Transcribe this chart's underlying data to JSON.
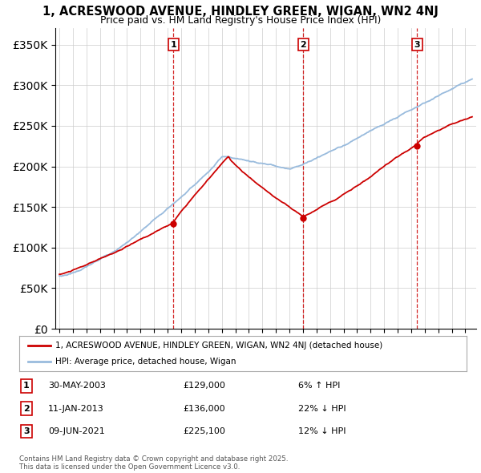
{
  "title": "1, ACRESWOOD AVENUE, HINDLEY GREEN, WIGAN, WN2 4NJ",
  "subtitle": "Price paid vs. HM Land Registry's House Price Index (HPI)",
  "legend_label_red": "1, ACRESWOOD AVENUE, HINDLEY GREEN, WIGAN, WN2 4NJ (detached house)",
  "legend_label_blue": "HPI: Average price, detached house, Wigan",
  "footer": "Contains HM Land Registry data © Crown copyright and database right 2025.\nThis data is licensed under the Open Government Licence v3.0.",
  "transactions": [
    {
      "num": 1,
      "date": "30-MAY-2003",
      "price": "£129,000",
      "hpi_pct": "6% ↑ HPI",
      "year": 2003.42
    },
    {
      "num": 2,
      "date": "11-JAN-2013",
      "price": "£136,000",
      "hpi_pct": "22% ↓ HPI",
      "year": 2013.03
    },
    {
      "num": 3,
      "date": "09-JUN-2021",
      "price": "£225,100",
      "hpi_pct": "12% ↓ HPI",
      "year": 2021.44
    }
  ],
  "ylim": [
    0,
    370000
  ],
  "yticks": [
    0,
    50000,
    100000,
    150000,
    200000,
    250000,
    300000,
    350000
  ],
  "xlim_start": 1994.7,
  "xlim_end": 2025.8,
  "background_color": "#ffffff",
  "grid_color": "#cccccc",
  "red_color": "#cc0000",
  "blue_color": "#99bbdd"
}
